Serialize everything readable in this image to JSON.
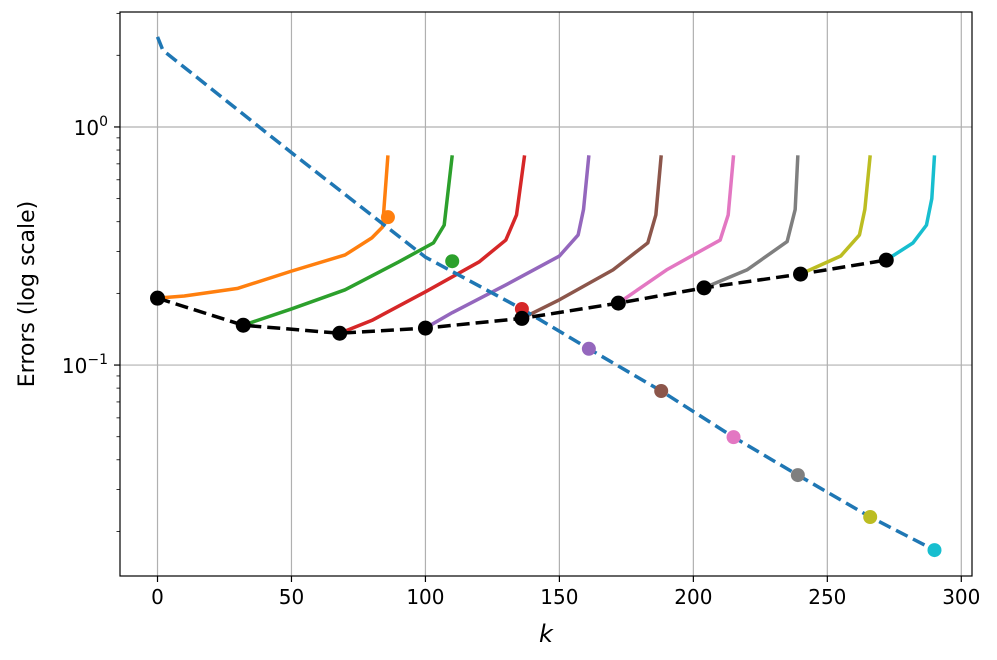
{
  "chart_data": {
    "type": "line",
    "xlabel": "k",
    "ylabel": "Errors (log scale)",
    "xlim": [
      -14,
      304
    ],
    "ylim": [
      0.013,
      3.04
    ],
    "yscale": "log",
    "grid": true,
    "x_ticks": [
      0,
      50,
      100,
      150,
      200,
      250,
      300
    ],
    "x_tick_labels": [
      "0",
      "50",
      "100",
      "150",
      "200",
      "250",
      "300"
    ],
    "y_ticks": [
      1,
      0.1
    ],
    "y_tick_labels": [
      {
        "base": "10",
        "exp": "0"
      },
      {
        "base": "10",
        "exp": "−1"
      }
    ],
    "dashed_blue": {
      "color": "#1f77b4",
      "x": [
        0,
        2,
        50,
        100,
        136,
        161,
        188,
        215,
        239,
        266,
        290
      ],
      "y": [
        2.39,
        2.1,
        0.78,
        0.284,
        0.172,
        0.117,
        0.0778,
        0.0498,
        0.0345,
        0.023,
        0.0167
      ]
    },
    "dashed_black": {
      "color": "#000000",
      "x": [
        0,
        32,
        68,
        100,
        136,
        172,
        204,
        240,
        272
      ],
      "y": [
        0.191,
        0.147,
        0.136,
        0.143,
        0.157,
        0.182,
        0.211,
        0.241,
        0.276
      ]
    },
    "series": [
      {
        "color": "#ff7f0e",
        "x": [
          0,
          10,
          30,
          50,
          70,
          80,
          84,
          86
        ],
        "y": [
          0.191,
          0.195,
          0.21,
          0.248,
          0.29,
          0.342,
          0.38,
          0.76
        ],
        "marker": [
          86,
          0.418
        ]
      },
      {
        "color": "#2ca02c",
        "x": [
          32,
          50,
          70,
          90,
          103,
          107,
          110
        ],
        "y": [
          0.147,
          0.172,
          0.207,
          0.271,
          0.326,
          0.387,
          0.76
        ],
        "marker": [
          110,
          0.273
        ]
      },
      {
        "color": "#d62728",
        "x": [
          68,
          80,
          100,
          120,
          130,
          134,
          137
        ],
        "y": [
          0.136,
          0.154,
          0.203,
          0.271,
          0.335,
          0.427,
          0.76
        ],
        "marker": [
          136,
          0.172
        ]
      },
      {
        "color": "#9467bd",
        "x": [
          100,
          110,
          130,
          150,
          157,
          159,
          161
        ],
        "y": [
          0.143,
          0.166,
          0.217,
          0.287,
          0.352,
          0.45,
          0.76
        ],
        "marker": [
          161,
          0.117
        ]
      },
      {
        "color": "#8c564b",
        "x": [
          136,
          150,
          170,
          183,
          186,
          188
        ],
        "y": [
          0.157,
          0.188,
          0.251,
          0.326,
          0.427,
          0.76
        ],
        "marker": [
          188,
          0.0778
        ]
      },
      {
        "color": "#e377c2",
        "x": [
          172,
          190,
          210,
          213,
          215
        ],
        "y": [
          0.182,
          0.251,
          0.335,
          0.427,
          0.76
        ],
        "marker": [
          215,
          0.0498
        ]
      },
      {
        "color": "#7f7f7f",
        "x": [
          204,
          220,
          235,
          238,
          239
        ],
        "y": [
          0.211,
          0.251,
          0.33,
          0.45,
          0.76
        ],
        "marker": [
          239,
          0.0345
        ]
      },
      {
        "color": "#bcbd22",
        "x": [
          240,
          255,
          262,
          264,
          266
        ],
        "y": [
          0.241,
          0.287,
          0.352,
          0.45,
          0.76
        ],
        "marker": [
          266,
          0.023
        ]
      },
      {
        "color": "#17becf",
        "x": [
          272,
          282,
          287,
          289,
          290
        ],
        "y": [
          0.276,
          0.326,
          0.387,
          0.5,
          0.76
        ],
        "marker": [
          290,
          0.0167
        ]
      }
    ]
  }
}
